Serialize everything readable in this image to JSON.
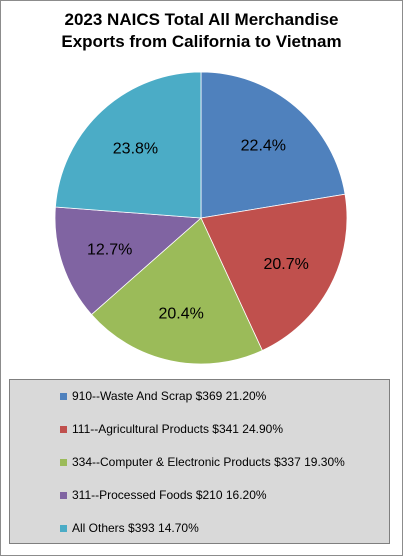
{
  "title_line1": "2023 NAICS Total All Merchandise",
  "title_line2": "Exports from California to Vietnam",
  "chart_data": {
    "type": "pie",
    "title": "2023 NAICS Total All Merchandise Exports from California to Vietnam",
    "start_angle_deg": 0,
    "direction": "clockwise",
    "slices": [
      {
        "label": "910--Waste And Scrap $369 21.20%",
        "value": 22.4,
        "data_label": "22.4%",
        "color": "#4f81bd"
      },
      {
        "label": "111--Agricultural Products $341 24.90%",
        "value": 20.7,
        "data_label": "20.7%",
        "color": "#c0504d"
      },
      {
        "label": "334--Computer & Electronic Products $337 19.30%",
        "value": 20.4,
        "data_label": "20.4%",
        "color": "#9bbb59"
      },
      {
        "label": "311--Processed Foods $210 16.20%",
        "value": 12.7,
        "data_label": "12.7%",
        "color": "#8064a2"
      },
      {
        "label": "All Others $393 14.70%",
        "value": 23.8,
        "data_label": "23.8%",
        "color": "#4bacc6"
      }
    ],
    "legend_position": "bottom"
  }
}
